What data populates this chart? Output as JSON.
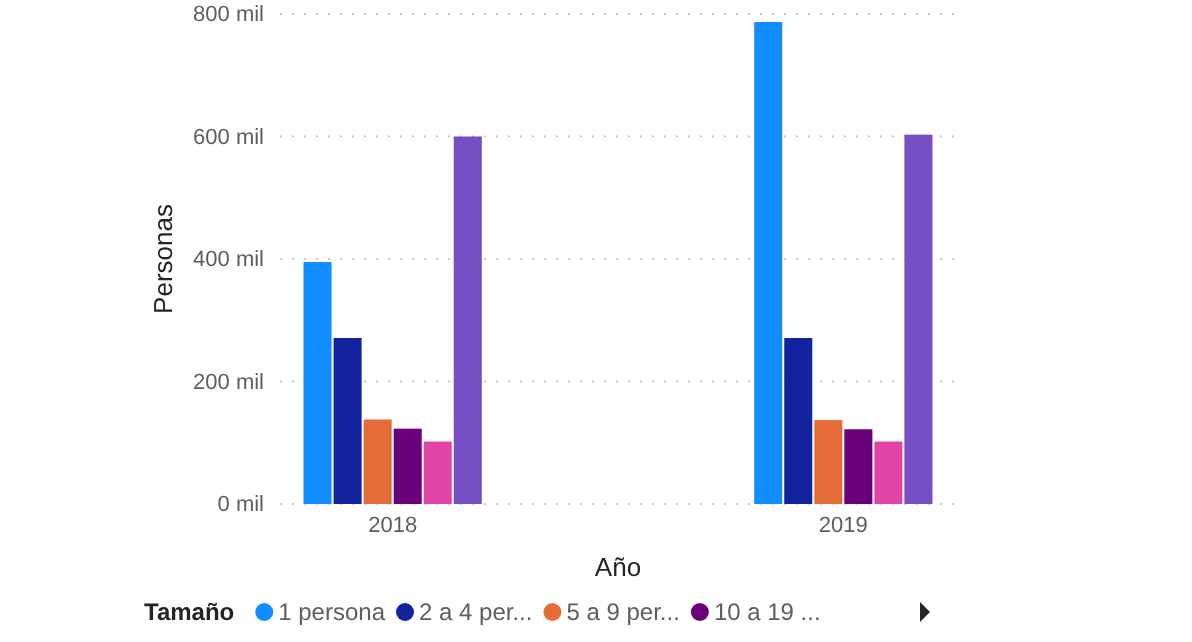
{
  "chart_data": {
    "type": "bar",
    "categories": [
      "2018",
      "2019"
    ],
    "xlabel": "Año",
    "ylabel": "Personas",
    "legend_title": "Tamaño",
    "legend": "bottom",
    "grid": "y",
    "ylim": [
      0,
      800
    ],
    "yticks": [
      {
        "value": 0,
        "label": "0 mil"
      },
      {
        "value": 200,
        "label": "200 mil"
      },
      {
        "value": 400,
        "label": "400 mil"
      },
      {
        "value": 600,
        "label": "600 mil"
      },
      {
        "value": 800,
        "label": "800 mil"
      }
    ],
    "series": [
      {
        "name": "1 persona",
        "color": "#118dff",
        "values": [
          395,
          787
        ]
      },
      {
        "name": "2 a 4 per...",
        "color": "#12239e",
        "values": [
          271,
          271
        ]
      },
      {
        "name": "5 a 9 per...",
        "color": "#e66c37",
        "values": [
          138,
          137
        ]
      },
      {
        "name": "10 a 19 ...",
        "color": "#6b007b",
        "values": [
          123,
          122
        ]
      },
      {
        "color": "#e044a7",
        "values": [
          102,
          102
        ]
      },
      {
        "color": "#744ec2",
        "values": [
          600,
          603
        ]
      }
    ]
  }
}
